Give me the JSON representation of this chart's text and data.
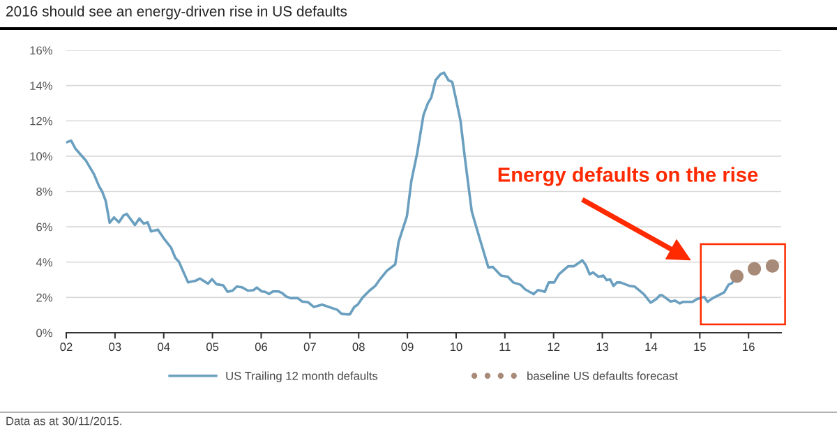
{
  "chart_data": {
    "type": "line",
    "title": "2016 should see an energy-driven rise in US defaults",
    "series": [
      {
        "name": "US Trailing 12 month defaults",
        "color": "#6a9fbf",
        "x": [
          2002.0,
          2002.1,
          2002.19,
          2002.4,
          2002.57,
          2002.67,
          2002.74,
          2002.81,
          2002.89,
          2002.98,
          2003.08,
          2003.17,
          2003.24,
          2003.41,
          2003.5,
          2003.59,
          2003.67,
          2003.74,
          2003.88,
          2004.0,
          2004.15,
          2004.24,
          2004.31,
          2004.5,
          2004.65,
          2004.74,
          2004.91,
          2004.99,
          2005.08,
          2005.22,
          2005.31,
          2005.41,
          2005.5,
          2005.6,
          2005.73,
          2005.84,
          2005.91,
          2006.01,
          2006.08,
          2006.16,
          2006.24,
          2006.36,
          2006.43,
          2006.51,
          2006.6,
          2006.75,
          2006.84,
          2006.96,
          2007.08,
          2007.25,
          2007.56,
          2007.65,
          2007.77,
          2007.82,
          2007.91,
          2007.98,
          2008.08,
          2008.22,
          2008.34,
          2008.44,
          2008.58,
          2008.75,
          2008.82,
          2008.99,
          2009.08,
          2009.2,
          2009.33,
          2009.42,
          2009.49,
          2009.58,
          2009.68,
          2009.75,
          2009.84,
          2009.92,
          2009.99,
          2010.09,
          2010.18,
          2010.32,
          2010.46,
          2010.66,
          2010.75,
          2010.92,
          2011.06,
          2011.17,
          2011.32,
          2011.42,
          2011.59,
          2011.68,
          2011.82,
          2011.9,
          2012.01,
          2012.11,
          2012.3,
          2012.42,
          2012.59,
          2012.66,
          2012.74,
          2012.81,
          2012.92,
          2013.02,
          2013.09,
          2013.16,
          2013.23,
          2013.3,
          2013.37,
          2013.56,
          2013.66,
          2013.85,
          2013.99,
          2014.11,
          2014.18,
          2014.23,
          2014.4,
          2014.49,
          2014.59,
          2014.66,
          2014.85,
          2014.95,
          2015.09,
          2015.16,
          2015.26,
          2015.38,
          2015.5,
          2015.59,
          2015.66,
          2015.73
        ],
        "values": [
          10.78,
          10.88,
          10.42,
          9.76,
          8.97,
          8.31,
          7.98,
          7.46,
          6.23,
          6.53,
          6.25,
          6.63,
          6.73,
          6.1,
          6.47,
          6.18,
          6.25,
          5.74,
          5.84,
          5.35,
          4.82,
          4.23,
          4.03,
          2.85,
          2.94,
          3.07,
          2.78,
          3.04,
          2.75,
          2.69,
          2.32,
          2.38,
          2.62,
          2.58,
          2.38,
          2.41,
          2.56,
          2.34,
          2.32,
          2.19,
          2.34,
          2.34,
          2.25,
          2.06,
          1.96,
          1.96,
          1.77,
          1.73,
          1.46,
          1.59,
          1.3,
          1.07,
          1.04,
          1.04,
          1.46,
          1.59,
          1.99,
          2.38,
          2.65,
          3.04,
          3.51,
          3.87,
          5.15,
          6.6,
          8.58,
          10.16,
          12.33,
          12.99,
          13.32,
          14.31,
          14.64,
          14.73,
          14.31,
          14.2,
          13.32,
          12.0,
          9.89,
          6.87,
          5.55,
          3.7,
          3.73,
          3.24,
          3.17,
          2.85,
          2.72,
          2.45,
          2.19,
          2.42,
          2.32,
          2.85,
          2.85,
          3.31,
          3.77,
          3.77,
          4.1,
          3.83,
          3.31,
          3.41,
          3.17,
          3.24,
          2.98,
          3.02,
          2.65,
          2.85,
          2.85,
          2.65,
          2.62,
          2.19,
          1.7,
          1.92,
          2.12,
          2.12,
          1.77,
          1.82,
          1.66,
          1.75,
          1.75,
          1.92,
          2.03,
          1.75,
          1.95,
          2.12,
          2.29,
          2.72,
          2.81,
          3.11
        ]
      },
      {
        "name": "baseline US defaults forecast",
        "type": "scatter",
        "marker": "circle",
        "color": "#a88a78",
        "x": [
          2015.76,
          2016.12,
          2016.49
        ],
        "values": [
          3.2,
          3.62,
          3.78
        ]
      }
    ],
    "xlim": [
      2002,
      2016.67
    ],
    "xticks": [
      {
        "value": 2002,
        "label": "02"
      },
      {
        "value": 2003,
        "label": "03"
      },
      {
        "value": 2004,
        "label": "04"
      },
      {
        "value": 2005,
        "label": "05"
      },
      {
        "value": 2006,
        "label": "06"
      },
      {
        "value": 2007,
        "label": "07"
      },
      {
        "value": 2008,
        "label": "08"
      },
      {
        "value": 2009,
        "label": "09"
      },
      {
        "value": 2010,
        "label": "10"
      },
      {
        "value": 2011,
        "label": "11"
      },
      {
        "value": 2012,
        "label": "12"
      },
      {
        "value": 2013,
        "label": "13"
      },
      {
        "value": 2014,
        "label": "14"
      },
      {
        "value": 2015,
        "label": "15"
      },
      {
        "value": 2016,
        "label": "16"
      }
    ],
    "ylim": [
      0,
      16
    ],
    "yticks": [
      {
        "value": 0,
        "label": "0%"
      },
      {
        "value": 2,
        "label": "2%"
      },
      {
        "value": 4,
        "label": "4%"
      },
      {
        "value": 6,
        "label": "6%"
      },
      {
        "value": 8,
        "label": "8%"
      },
      {
        "value": 10,
        "label": "10%"
      },
      {
        "value": 12,
        "label": "12%"
      },
      {
        "value": 14,
        "label": "14%"
      },
      {
        "value": 16,
        "label": "16%"
      }
    ],
    "grid": "y",
    "legend": "bottom",
    "annotations": [
      "Energy defaults on the rise",
      "Data as at 30/11/2015."
    ]
  }
}
